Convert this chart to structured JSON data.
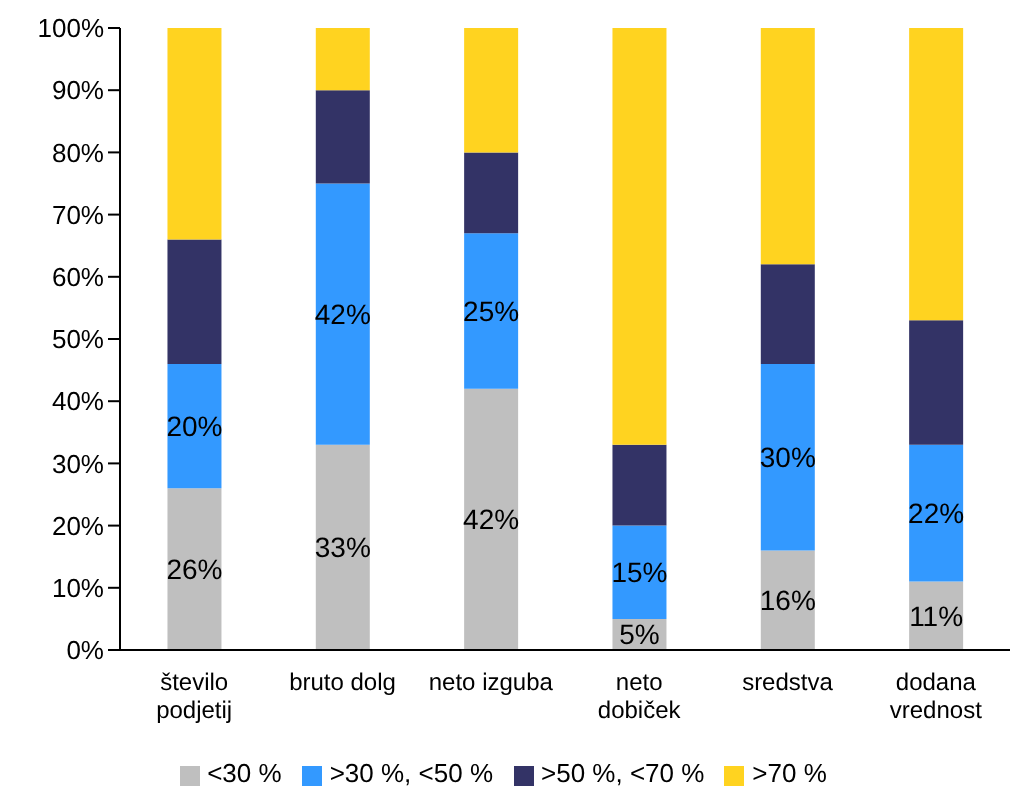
{
  "chart_data": {
    "type": "bar",
    "stacked": true,
    "categories": [
      "število podjetij",
      "bruto dolg",
      "neto izguba",
      "neto dobiček",
      "sredstva",
      "dodana vrednost"
    ],
    "series": [
      {
        "name": "<30 %",
        "color": "#bfbfbf",
        "values": [
          26,
          33,
          42,
          5,
          16,
          11
        ],
        "value_labels": [
          "26%",
          "33%",
          "42%",
          "5%",
          "16%",
          "11%"
        ]
      },
      {
        "name": ">30 %, <50 %",
        "color": "#3399ff",
        "values": [
          20,
          42,
          25,
          15,
          30,
          22
        ],
        "value_labels": [
          "20%",
          "42%",
          "25%",
          "15%",
          "30%",
          "22%"
        ]
      },
      {
        "name": ">50 %, <70 %",
        "color": "#333366",
        "values": [
          20,
          15,
          13,
          13,
          16,
          20
        ]
      },
      {
        "name": ">70 %",
        "color": "#ffd320",
        "values": [
          34,
          10,
          20,
          67,
          38,
          47
        ]
      }
    ],
    "ylim": [
      0,
      100
    ],
    "yticks": [
      {
        "value": 0,
        "label": "0%"
      },
      {
        "value": 10,
        "label": "10%"
      },
      {
        "value": 20,
        "label": "20%"
      },
      {
        "value": 30,
        "label": "30%"
      },
      {
        "value": 40,
        "label": "40%"
      },
      {
        "value": 50,
        "label": "50%"
      },
      {
        "value": 60,
        "label": "60%"
      },
      {
        "value": 70,
        "label": "70%"
      },
      {
        "value": 80,
        "label": "80%"
      },
      {
        "value": 90,
        "label": "90%"
      },
      {
        "value": 100,
        "label": "100%"
      }
    ],
    "grid": false,
    "legend": "bottom"
  }
}
